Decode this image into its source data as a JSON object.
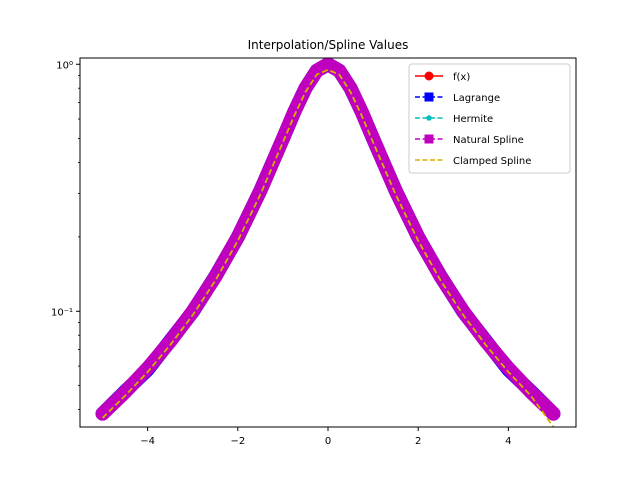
{
  "chart_data": {
    "type": "line",
    "title": "Interpolation/Spline Values",
    "xlabel": "",
    "ylabel": "",
    "xlim": [
      -5.5,
      5.5
    ],
    "ylim": [
      0.034,
      1.06
    ],
    "yscale": "log",
    "grid": false,
    "legend_position": "top-right",
    "x_ticks": [
      -4,
      -2,
      0,
      2,
      4
    ],
    "x_tick_labels": [
      "−4",
      "−2",
      "0",
      "2",
      "4"
    ],
    "y_ticks": [
      0.1,
      1
    ],
    "y_tick_labels": [
      "10⁻¹",
      "10⁰"
    ],
    "x": [
      -5,
      -4.5,
      -4,
      -3.5,
      -3,
      -2.5,
      -2,
      -1.5,
      -1,
      -0.75,
      -0.5,
      -0.25,
      0,
      0.25,
      0.5,
      0.75,
      1,
      1.5,
      2,
      2.5,
      3,
      3.5,
      4,
      4.5,
      5
    ],
    "series": [
      {
        "name": "f(x)",
        "color": "#ff0000",
        "dash": "solid",
        "marker": "circle",
        "values": [
          0.0385,
          0.0471,
          0.0588,
          0.0755,
          0.1,
          0.1379,
          0.2,
          0.3077,
          0.5,
          0.64,
          0.8,
          0.9412,
          1.0,
          0.9412,
          0.8,
          0.64,
          0.5,
          0.3077,
          0.2,
          0.1379,
          0.1,
          0.0755,
          0.0588,
          0.0471,
          0.0385
        ]
      },
      {
        "name": "Lagrange",
        "color": "#0000ff",
        "dash": "dashed",
        "marker": "square",
        "values": [
          0.0385,
          0.0474,
          0.058,
          0.076,
          0.0995,
          0.1384,
          0.1995,
          0.3082,
          0.4995,
          0.6404,
          0.7996,
          0.9415,
          0.9998,
          0.9415,
          0.7996,
          0.6404,
          0.4995,
          0.3082,
          0.1995,
          0.1384,
          0.0995,
          0.076,
          0.058,
          0.0474,
          0.0385
        ]
      },
      {
        "name": "Hermite",
        "color": "#00bfbf",
        "dash": "dashed",
        "marker": "pentagon",
        "values": [
          0.0385,
          0.0471,
          0.0588,
          0.0755,
          0.1,
          0.1379,
          0.2,
          0.3077,
          0.5,
          0.64,
          0.8,
          0.9412,
          1.0,
          0.9412,
          0.8,
          0.64,
          0.5,
          0.3077,
          0.2,
          0.1379,
          0.1,
          0.0755,
          0.0588,
          0.0471,
          0.0385
        ]
      },
      {
        "name": "Natural Spline",
        "color": "#bf00bf",
        "dash": "dashed",
        "marker": "square",
        "values": [
          0.0385,
          0.0471,
          0.0588,
          0.0755,
          0.1,
          0.1379,
          0.2,
          0.3077,
          0.5,
          0.64,
          0.8,
          0.9412,
          1.0,
          0.9412,
          0.8,
          0.64,
          0.5,
          0.3077,
          0.2,
          0.1379,
          0.1,
          0.0755,
          0.0588,
          0.0471,
          0.0385
        ]
      },
      {
        "name": "Clamped Spline",
        "color": "#d4b000",
        "dash": "dashed",
        "marker": "none",
        "values": [
          0.037,
          0.0455,
          0.0568,
          0.073,
          0.0965,
          0.133,
          0.193,
          0.297,
          0.483,
          0.618,
          0.772,
          0.908,
          0.95,
          0.908,
          0.772,
          0.618,
          0.483,
          0.297,
          0.193,
          0.133,
          0.0965,
          0.073,
          0.0568,
          0.0455,
          0.034
        ]
      }
    ]
  }
}
